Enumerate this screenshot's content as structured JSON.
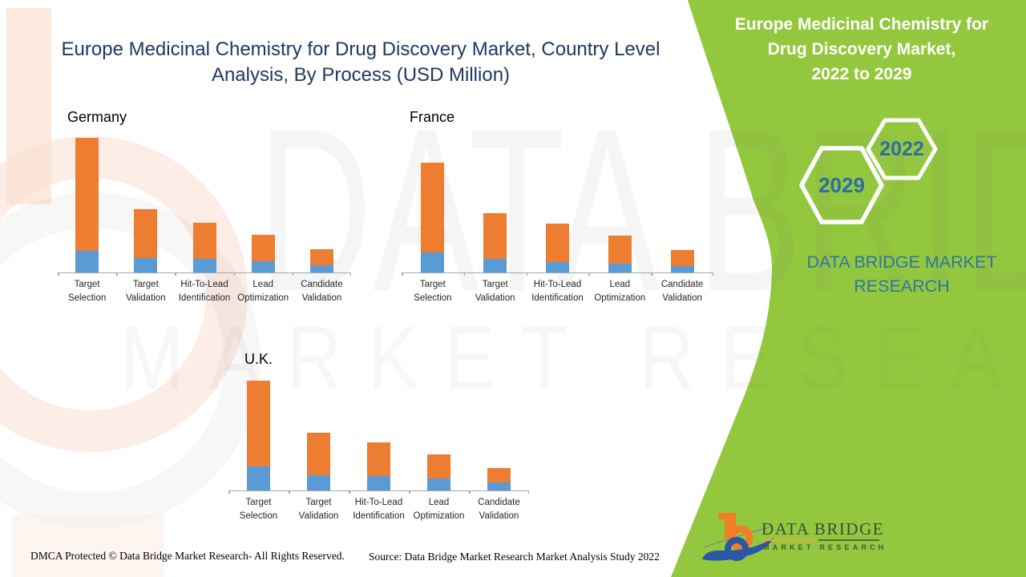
{
  "main_title_lines": [
    "Europe Medicinal Chemistry for Drug Discovery Market, Country Level",
    "Analysis, By Process (USD Million)"
  ],
  "side_panel": {
    "title_lines": [
      "Europe Medicinal Chemistry for",
      "Drug Discovery Market,",
      "2022 to 2029"
    ],
    "hexagon_back_label": "2022",
    "hexagon_front_label": "2029",
    "brand": "DATA BRIDGE MARKET RESEARCH",
    "panel_color": "#93C83E",
    "brand_text_color": "#2E74A8",
    "hexagon_text_color": "#2E6DA4"
  },
  "watermark": {
    "line1": "DATA BRIDGE",
    "line2": "MARKET RESEARCH"
  },
  "logo": {
    "name": "DATA BRIDGE",
    "tagline": "MARKET RESEARCH"
  },
  "footer": {
    "dmca": "DMCA Protected © Data Bridge Market Research- All Rights Reserved.",
    "source": "Source: Data Bridge Market Research Market Analysis Study 2022"
  },
  "chart_data": [
    {
      "type": "bar",
      "stacked": true,
      "title": "Germany",
      "categories": [
        "Target Selection",
        "Target Validation",
        "Hit-To-Lead Identification",
        "Lead Optimization",
        "Candidate Validation"
      ],
      "series": [
        {
          "name": "lower segment (blue)",
          "color": "#5B9BD5",
          "values": [
            27,
            18,
            17,
            14,
            9
          ]
        },
        {
          "name": "upper segment (orange)",
          "color": "#ED7D31",
          "values": [
            141,
            61,
            45,
            33,
            20
          ]
        }
      ],
      "totals": [
        168,
        79,
        62,
        47,
        29
      ],
      "ylabel": "USD Million",
      "value_axis": "unlabeled - values are relative estimates in pixels",
      "grid": false,
      "legend": "none"
    },
    {
      "type": "bar",
      "stacked": true,
      "title": "France",
      "categories": [
        "Target Selection",
        "Target Validation",
        "Hit-To-Lead Identification",
        "Lead Optimization",
        "Candidate Validation"
      ],
      "series": [
        {
          "name": "lower segment (blue)",
          "color": "#5B9BD5",
          "values": [
            25,
            17,
            13,
            11,
            8
          ]
        },
        {
          "name": "upper segment (orange)",
          "color": "#ED7D31",
          "values": [
            112,
            57,
            48,
            35,
            20
          ]
        }
      ],
      "totals": [
        137,
        74,
        61,
        46,
        28
      ],
      "ylabel": "USD Million",
      "value_axis": "unlabeled - values are relative estimates in pixels",
      "grid": false,
      "legend": "none"
    },
    {
      "type": "bar",
      "stacked": true,
      "title": "U.K.",
      "categories": [
        "Target Selection",
        "Target Validation",
        "Hit-To-Lead Identification",
        "Lead Optimization",
        "Candidate Validation"
      ],
      "series": [
        {
          "name": "lower segment (blue)",
          "color": "#5B9BD5",
          "values": [
            30,
            19,
            18,
            15,
            10
          ]
        },
        {
          "name": "upper segment (orange)",
          "color": "#ED7D31",
          "values": [
            107,
            53,
            42,
            30,
            18
          ]
        }
      ],
      "totals": [
        137,
        72,
        60,
        45,
        28
      ],
      "ylabel": "USD Million",
      "value_axis": "unlabeled - values are relative estimates in pixels",
      "grid": false,
      "legend": "none"
    }
  ]
}
